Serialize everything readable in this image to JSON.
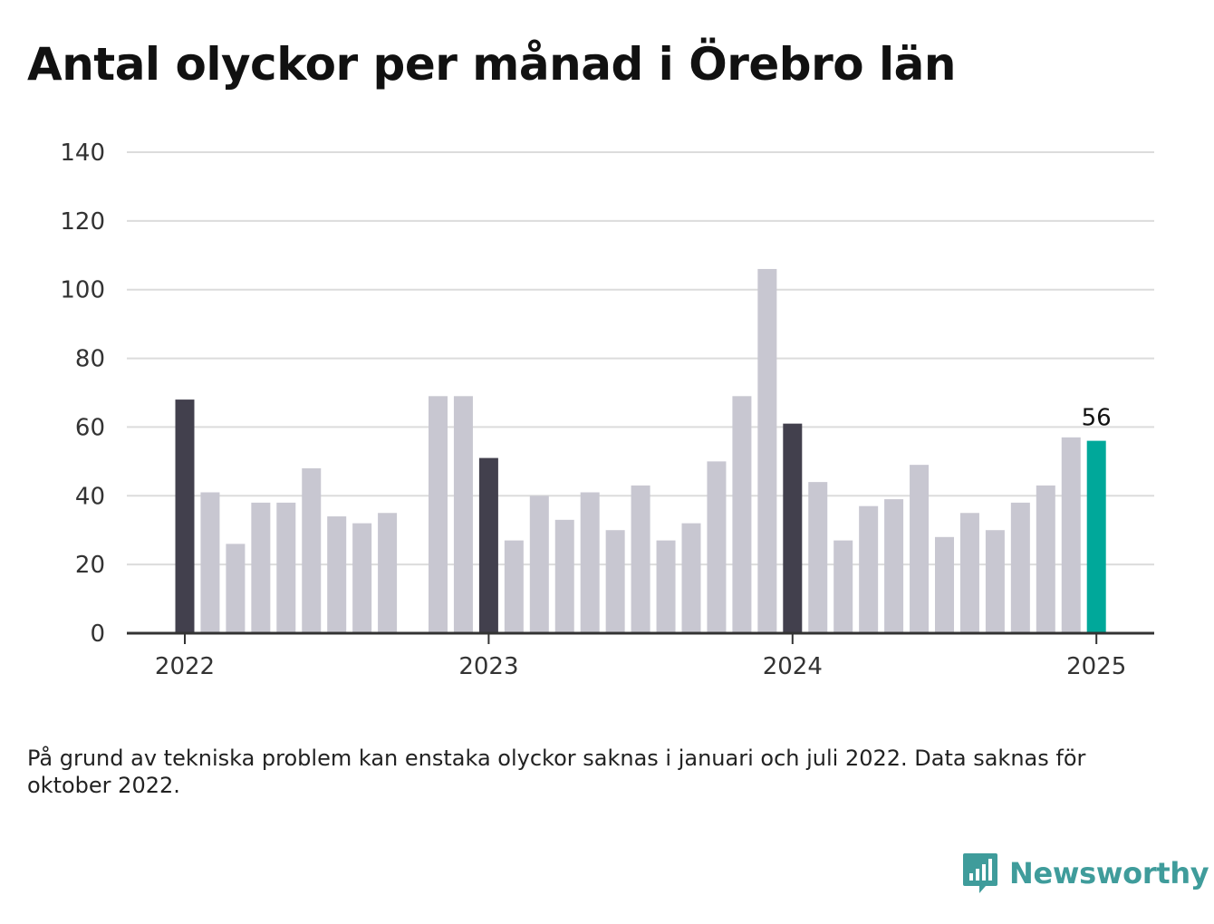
{
  "title": "Antal olyckor per månad i Örebro län",
  "footnote": "På grund av tekniska problem kan enstaka olyckor saknas i januari och juli 2022. Data saknas för oktober 2022.",
  "brand": {
    "name": "Newsworthy",
    "icon": "newsworthy-logo-icon"
  },
  "colors": {
    "january": "#42404d",
    "month": "#c8c7d1",
    "latest": "#00a89a",
    "grid": "#dcdcdc",
    "axis": "#333333"
  },
  "chart_data": {
    "type": "bar",
    "title": "Antal olyckor per månad i Örebro län",
    "xlabel": "",
    "ylabel": "",
    "ylim": [
      0,
      140
    ],
    "yticks": [
      0,
      20,
      40,
      60,
      80,
      100,
      120,
      140
    ],
    "xticks": [
      {
        "label": "2022",
        "month": "2022-01"
      },
      {
        "label": "2023",
        "month": "2023-01"
      },
      {
        "label": "2024",
        "month": "2024-01"
      },
      {
        "label": "2025",
        "month": "2025-01"
      }
    ],
    "grid": true,
    "months": [
      "2022-01",
      "2022-02",
      "2022-03",
      "2022-04",
      "2022-05",
      "2022-06",
      "2022-07",
      "2022-08",
      "2022-09",
      "2022-10",
      "2022-11",
      "2022-12",
      "2023-01",
      "2023-02",
      "2023-03",
      "2023-04",
      "2023-05",
      "2023-06",
      "2023-07",
      "2023-08",
      "2023-09",
      "2023-10",
      "2023-11",
      "2023-12",
      "2024-01",
      "2024-02",
      "2024-03",
      "2024-04",
      "2024-05",
      "2024-06",
      "2024-07",
      "2024-08",
      "2024-09",
      "2024-10",
      "2024-11",
      "2024-12",
      "2025-01"
    ],
    "values": [
      68,
      41,
      26,
      38,
      38,
      48,
      34,
      32,
      35,
      null,
      69,
      69,
      51,
      27,
      40,
      33,
      41,
      30,
      43,
      27,
      32,
      50,
      69,
      106,
      61,
      44,
      27,
      37,
      39,
      49,
      28,
      35,
      30,
      38,
      43,
      57,
      56
    ],
    "highlight": {
      "month": "2025-01",
      "label": "56"
    }
  }
}
